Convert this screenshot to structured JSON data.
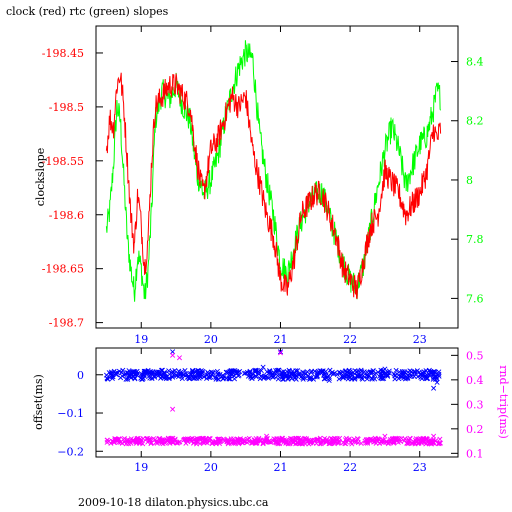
{
  "title": "clock (red) rtc (green) slopes",
  "footer": "2009-10-18 dilaton.physics.ubc.ca",
  "colors": {
    "red": "#ff0000",
    "green": "#00ff00",
    "blue": "#0000ff",
    "magenta": "#ff00ff",
    "axis": "#000000"
  },
  "chart_data": [
    {
      "type": "line",
      "ylabel_left": "clockslope",
      "xlim": [
        18.35,
        23.55
      ],
      "x_ticks": [
        19,
        20,
        21,
        22,
        23
      ],
      "ylim_left": [
        -198.705,
        -198.425
      ],
      "y_ticks_left": [
        -198.45,
        -198.5,
        -198.55,
        -198.6,
        -198.65,
        -198.7
      ],
      "y_tick_labels_left": [
        "-198.45",
        "-198.5",
        "-198.55",
        "-198.6",
        "-198.65",
        "-198.7"
      ],
      "ylim_right": [
        7.5,
        8.52
      ],
      "y_ticks_right": [
        7.6,
        7.8,
        8,
        8.2,
        8.4
      ],
      "y_tick_labels_right": [
        "7.6",
        "7.8",
        "8",
        "8.2",
        "8.4"
      ],
      "series": [
        {
          "color": "red",
          "axis": "left",
          "x": [
            18.5,
            18.55,
            18.6,
            18.65,
            18.7,
            18.75,
            18.8,
            18.85,
            18.9,
            18.95,
            19.0,
            19.05,
            19.1,
            19.15,
            19.2,
            19.3,
            19.4,
            19.5,
            19.6,
            19.7,
            19.8,
            19.85,
            19.9,
            19.95,
            20.0,
            20.1,
            20.2,
            20.3,
            20.4,
            20.5,
            20.6,
            20.7,
            20.8,
            20.9,
            21.0,
            21.1,
            21.2,
            21.3,
            21.4,
            21.5,
            21.6,
            21.7,
            21.8,
            21.9,
            22.0,
            22.1,
            22.2,
            22.3,
            22.4,
            22.5,
            22.6,
            22.7,
            22.8,
            22.9,
            23.0,
            23.1,
            23.2,
            23.25,
            23.3
          ],
          "y": [
            -198.54,
            -198.51,
            -198.52,
            -198.48,
            -198.47,
            -198.5,
            -198.55,
            -198.6,
            -198.63,
            -198.58,
            -198.61,
            -198.65,
            -198.62,
            -198.55,
            -198.5,
            -198.49,
            -198.48,
            -198.48,
            -198.49,
            -198.5,
            -198.55,
            -198.57,
            -198.58,
            -198.56,
            -198.54,
            -198.53,
            -198.51,
            -198.49,
            -198.5,
            -198.49,
            -198.54,
            -198.57,
            -198.6,
            -198.62,
            -198.66,
            -198.67,
            -198.64,
            -198.6,
            -198.59,
            -198.58,
            -198.58,
            -198.6,
            -198.62,
            -198.65,
            -198.66,
            -198.67,
            -198.64,
            -198.61,
            -198.6,
            -198.56,
            -198.57,
            -198.58,
            -198.6,
            -198.59,
            -198.58,
            -198.56,
            -198.52,
            -198.53,
            -198.52
          ]
        },
        {
          "color": "green",
          "axis": "right",
          "x": [
            18.5,
            18.55,
            18.6,
            18.65,
            18.7,
            18.75,
            18.8,
            18.85,
            18.9,
            18.95,
            19.0,
            19.05,
            19.1,
            19.15,
            19.2,
            19.3,
            19.4,
            19.5,
            19.6,
            19.7,
            19.8,
            19.9,
            20.0,
            20.1,
            20.2,
            20.3,
            20.4,
            20.5,
            20.6,
            20.7,
            20.8,
            20.9,
            21.0,
            21.1,
            21.2,
            21.3,
            21.4,
            21.5,
            21.6,
            21.7,
            21.8,
            21.9,
            22.0,
            22.1,
            22.2,
            22.3,
            22.4,
            22.5,
            22.6,
            22.7,
            22.8,
            22.9,
            23.0,
            23.1,
            23.2,
            23.25,
            23.3
          ],
          "y": [
            7.83,
            7.9,
            8.05,
            8.25,
            8.2,
            8.0,
            7.8,
            7.7,
            7.62,
            7.75,
            7.7,
            7.6,
            7.7,
            7.9,
            8.2,
            8.3,
            8.27,
            8.32,
            8.25,
            8.2,
            8.02,
            7.95,
            8.0,
            8.08,
            8.2,
            8.3,
            8.38,
            8.43,
            8.41,
            8.15,
            8.0,
            7.88,
            7.72,
            7.68,
            7.78,
            7.86,
            7.92,
            7.95,
            7.96,
            7.88,
            7.8,
            7.72,
            7.66,
            7.64,
            7.72,
            7.85,
            7.98,
            8.1,
            8.18,
            8.1,
            7.98,
            8.05,
            8.12,
            8.15,
            8.24,
            8.3,
            8.28
          ]
        }
      ]
    },
    {
      "type": "scatter",
      "ylabel_left": "offset(ms)",
      "ylabel_right": "rnd−trip(ms)",
      "xlim": [
        18.35,
        23.55
      ],
      "x_ticks": [
        19,
        20,
        21,
        22,
        23
      ],
      "x_tick_labels": [
        "19",
        "20",
        "21",
        "22",
        "23"
      ],
      "ylim_left": [
        -0.215,
        0.07
      ],
      "y_ticks_left": [
        0,
        -0.1,
        -0.2
      ],
      "y_tick_labels_left": [
        "0",
        "−0.1",
        "−0.2"
      ],
      "ylim_right": [
        0.085,
        0.53
      ],
      "y_ticks_right": [
        0.1,
        0.2,
        0.3,
        0.4,
        0.5
      ],
      "y_tick_labels_right": [
        "0.1",
        "0.2",
        "0.3",
        "0.4",
        "0.5"
      ],
      "series": [
        {
          "color": "blue",
          "axis": "left",
          "marker": "x",
          "x_range": [
            18.5,
            23.3
          ],
          "y_center": 0.0,
          "y_spread": 0.012,
          "outliers": [
            [
              19.45,
              0.06
            ],
            [
              20.75,
              0.02
            ],
            [
              21.0,
              0.06
            ],
            [
              21.7,
              -0.015
            ],
            [
              22.5,
              0.015
            ],
            [
              23.2,
              -0.035
            ],
            [
              23.25,
              -0.02
            ]
          ]
        },
        {
          "color": "magenta",
          "axis": "right",
          "marker": "x",
          "x_range": [
            18.5,
            23.3
          ],
          "y_center": 0.15,
          "y_spread": 0.012,
          "outliers": [
            [
              19.45,
              0.5
            ],
            [
              19.55,
              0.49
            ],
            [
              19.45,
              0.28
            ],
            [
              21.0,
              0.51
            ],
            [
              20.8,
              0.17
            ],
            [
              22.5,
              0.17
            ],
            [
              23.2,
              0.17
            ]
          ]
        }
      ]
    }
  ]
}
